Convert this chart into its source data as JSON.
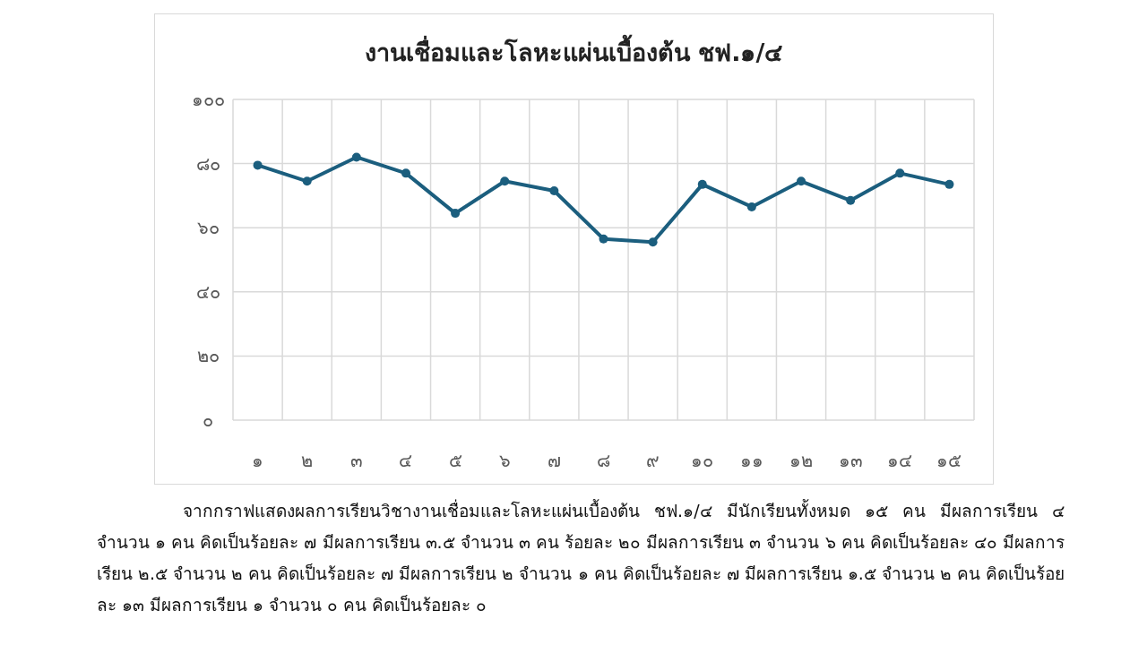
{
  "chart_data": {
    "type": "line",
    "title": "งานเชื่อมและโลหะแผ่นเบื้องต้น ชฟ.๑/๔",
    "categories": [
      "๑",
      "๒",
      "๓",
      "๔",
      "๕",
      "๖",
      "๗",
      "๘",
      "๙",
      "๑๐",
      "๑๑",
      "๑๒",
      "๑๓",
      "๑๔",
      "๑๕"
    ],
    "series": [
      {
        "color": "#1b5e7e",
        "values": [
          79.5,
          74.5,
          82,
          77,
          64.5,
          74.5,
          71.5,
          56.5,
          55.5,
          73.5,
          66.5,
          74.5,
          68.5,
          77,
          73.5
        ]
      }
    ],
    "ylim": [
      0,
      100
    ],
    "yticks": [
      {
        "value": 0,
        "label": "๐"
      },
      {
        "value": 20,
        "label": "๒๐"
      },
      {
        "value": 40,
        "label": "๔๐"
      },
      {
        "value": 60,
        "label": "๖๐"
      },
      {
        "value": 80,
        "label": "๘๐"
      },
      {
        "value": 100,
        "label": "๑๐๐"
      }
    ],
    "grid": true,
    "marker": "circle",
    "line_style": "solid",
    "annotations": [
      "จากกราฟแสดงผลการเรียนวิชางานเชื่อมและโลหะแผ่นเบื้องต้น ชฟ.๑/๔ มีนักเรียนทั้งหมด ๑๕ คน มีผลการเรียน ๔ จำนวน ๑ คน คิดเป็นร้อยละ ๗  มีผลการเรียน ๓.๕ จำนวน ๓ คน ร้อยละ ๒๐  มีผลการเรียน ๓ จำนวน ๖ คน คิดเป็นร้อยละ ๔๐  มีผลการเรียน ๒.๕ จำนวน ๒ คน คิดเป็นร้อยละ ๗ มีผลการเรียน ๒ จำนวน ๑ คน คิดเป็นร้อยละ ๗ มีผลการเรียน ๑.๕ จำนวน ๒ คน คิดเป็นร้อยละ ๑๓ มีผลการเรียน ๑ จำนวน ๐ คน คิดเป็นร้อยละ ๐"
    ]
  }
}
